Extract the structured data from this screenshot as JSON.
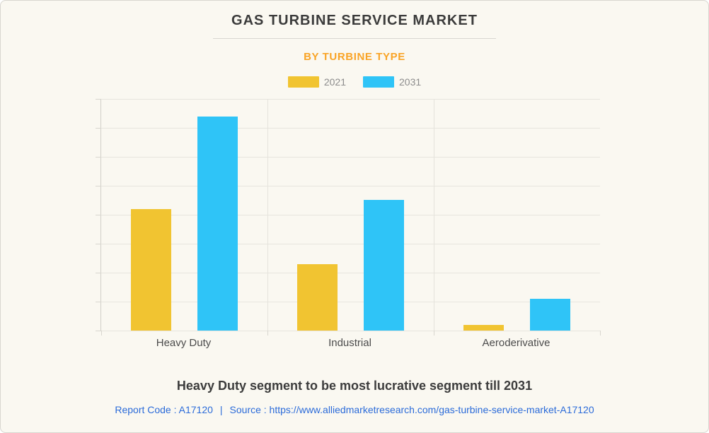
{
  "card": {
    "background": "#FAF8F1",
    "border_color": "#D8D6D0"
  },
  "header": {
    "title": "GAS TURBINE SERVICE MARKET",
    "subtitle": "BY TURBINE TYPE",
    "title_color": "#3B3B3B",
    "subtitle_color": "#F9A426"
  },
  "chart_data": {
    "type": "bar",
    "categories": [
      "Heavy Duty",
      "Industrial",
      "Aeroderivative"
    ],
    "series": [
      {
        "name": "2021",
        "color": "#F1C431",
        "values": [
          4.2,
          2.3,
          0.2
        ]
      },
      {
        "name": "2031",
        "color": "#2FC4F7",
        "values": [
          7.4,
          4.5,
          1.1
        ]
      }
    ],
    "title": "GAS TURBINE SERVICE MARKET",
    "subtitle": "BY TURBINE TYPE",
    "xlabel": "",
    "ylabel": "",
    "ylim": [
      0,
      8
    ],
    "y_gridlines": 9,
    "y_tick_labels_visible": false,
    "grid": true,
    "legend_position": "top"
  },
  "caption": "Heavy Duty segment to be most lucrative segment till 2031",
  "footer": {
    "report_code": "Report Code : A17120",
    "separator": "|",
    "source": "Source : https://www.alliedmarketresearch.com/gas-turbine-service-market-A17120",
    "color": "#2B6BD9"
  }
}
